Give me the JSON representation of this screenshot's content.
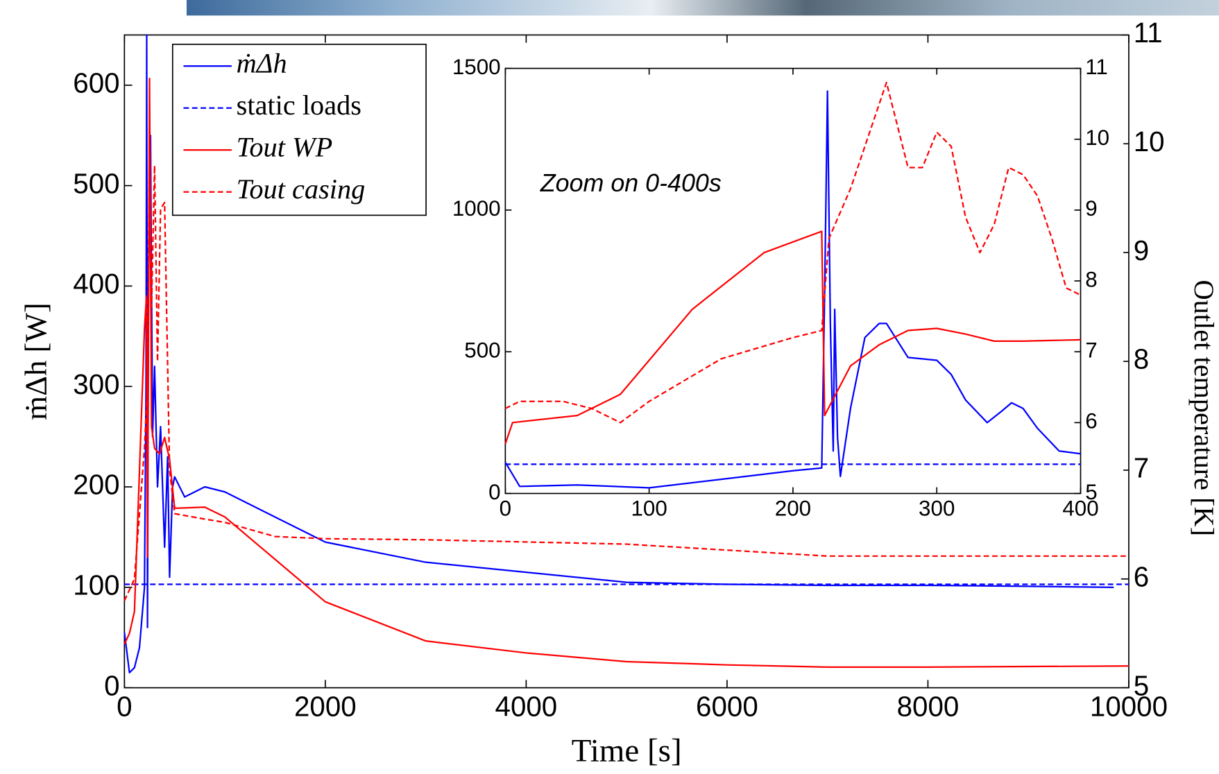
{
  "chart_data": [
    {
      "type": "line",
      "xlabel": "Time [s]",
      "ylabel": "ṁΔh [W]",
      "y2label": "Outlet temperature [K]",
      "xlim": [
        0,
        10000
      ],
      "xticks": [
        0,
        2000,
        4000,
        6000,
        8000,
        10000
      ],
      "ylim": [
        0,
        650
      ],
      "yticks": [
        0,
        100,
        200,
        300,
        400,
        500,
        600
      ],
      "y2lim": [
        5,
        11
      ],
      "y2ticks": [
        5,
        6,
        7,
        8,
        9,
        10,
        11
      ],
      "legend": "upper left",
      "series": [
        {
          "name": "ṁΔh",
          "color": "#0000ff",
          "style": "solid",
          "x": [
            0,
            50,
            100,
            150,
            200,
            215,
            222,
            230,
            240,
            260,
            280,
            300,
            330,
            360,
            400,
            430,
            450,
            480,
            500,
            600,
            800,
            1000,
            1500,
            2000,
            3000,
            4000,
            5000,
            6000,
            7000,
            8000,
            9000,
            9850
          ],
          "values": [
            55,
            15,
            20,
            40,
            100,
            300,
            650,
            60,
            400,
            550,
            250,
            320,
            200,
            260,
            140,
            230,
            110,
            200,
            210,
            190,
            200,
            195,
            170,
            145,
            125,
            115,
            105,
            103,
            102,
            102,
            101,
            100
          ]
        },
        {
          "name": "static loads",
          "color": "#0000ff",
          "style": "dashed",
          "x": [
            0,
            10000
          ],
          "values": [
            103,
            103
          ]
        },
        {
          "name": "Tout WP",
          "color": "#ff0000",
          "style": "solid",
          "axis": "y2",
          "x": [
            0,
            50,
            100,
            150,
            200,
            220,
            230,
            250,
            270,
            300,
            350,
            400,
            450,
            500,
            800,
            1000,
            1500,
            2000,
            3000,
            4000,
            5000,
            6000,
            7000,
            8000,
            10000
          ],
          "values": [
            5.4,
            5.5,
            5.7,
            7.0,
            8.3,
            8.6,
            6.2,
            10.6,
            7.4,
            7.2,
            7.15,
            7.3,
            7.1,
            6.65,
            6.66,
            6.57,
            6.18,
            5.79,
            5.43,
            5.32,
            5.24,
            5.21,
            5.19,
            5.19,
            5.2
          ]
        },
        {
          "name": "Tout casing",
          "color": "#ff0000",
          "style": "dashed",
          "axis": "y2",
          "x": [
            0,
            50,
            100,
            150,
            200,
            230,
            250,
            270,
            300,
            330,
            360,
            400,
            450,
            500,
            800,
            1000,
            1500,
            2000,
            3000,
            5000,
            7000,
            10000
          ],
          "values": [
            5.8,
            5.9,
            6.0,
            6.6,
            7.2,
            7.8,
            10.1,
            8.5,
            9.8,
            8.0,
            9.4,
            9.46,
            7.0,
            6.6,
            6.55,
            6.52,
            6.39,
            6.37,
            6.36,
            6.32,
            6.21,
            6.21
          ]
        }
      ]
    },
    {
      "type": "line",
      "annotation": "Zoom on 0-400s",
      "xlim": [
        0,
        400
      ],
      "xticks": [
        0,
        100,
        200,
        300,
        400
      ],
      "ylim": [
        0,
        1500
      ],
      "yticks": [
        0,
        500,
        1000,
        1500
      ],
      "y2lim": [
        5,
        11
      ],
      "y2ticks": [
        5,
        6,
        7,
        8,
        9,
        10,
        11
      ],
      "series": [
        {
          "name": "ṁΔh",
          "color": "#0000ff",
          "style": "solid",
          "x": [
            0,
            10,
            50,
            100,
            150,
            200,
            220,
            222,
            224,
            226,
            228,
            229,
            231,
            233,
            240,
            250,
            260,
            265,
            270,
            280,
            300,
            310,
            320,
            335,
            345,
            352,
            360,
            370,
            385,
            400
          ],
          "values": [
            110,
            25,
            30,
            20,
            50,
            80,
            90,
            700,
            1420,
            600,
            150,
            650,
            200,
            60,
            300,
            550,
            600,
            600,
            560,
            480,
            470,
            420,
            330,
            250,
            290,
            320,
            300,
            230,
            150,
            140
          ]
        },
        {
          "name": "static loads",
          "color": "#0000ff",
          "style": "dashed",
          "x": [
            0,
            400
          ],
          "values": [
            103,
            103
          ]
        },
        {
          "name": "Tout WP",
          "color": "#ff0000",
          "style": "solid",
          "axis": "y2",
          "x": [
            0,
            5,
            50,
            80,
            130,
            180,
            220,
            222,
            240,
            260,
            280,
            300,
            320,
            340,
            360,
            400
          ],
          "values": [
            5.7,
            6.0,
            6.1,
            6.4,
            7.6,
            8.4,
            8.7,
            6.1,
            6.8,
            7.1,
            7.3,
            7.33,
            7.25,
            7.15,
            7.15,
            7.17
          ]
        },
        {
          "name": "Tout casing",
          "color": "#ff0000",
          "style": "dashed",
          "axis": "y2",
          "x": [
            0,
            10,
            40,
            60,
            80,
            100,
            150,
            200,
            220,
            225,
            240,
            255,
            265,
            280,
            290,
            300,
            310,
            320,
            330,
            340,
            350,
            360,
            370,
            380,
            390,
            400
          ],
          "values": [
            6.2,
            6.3,
            6.3,
            6.2,
            6.0,
            6.3,
            6.9,
            7.2,
            7.3,
            8.6,
            9.3,
            10.2,
            10.8,
            9.6,
            9.6,
            10.1,
            9.9,
            8.9,
            8.4,
            8.8,
            9.6,
            9.5,
            9.2,
            8.6,
            7.9,
            7.8
          ]
        }
      ]
    }
  ]
}
